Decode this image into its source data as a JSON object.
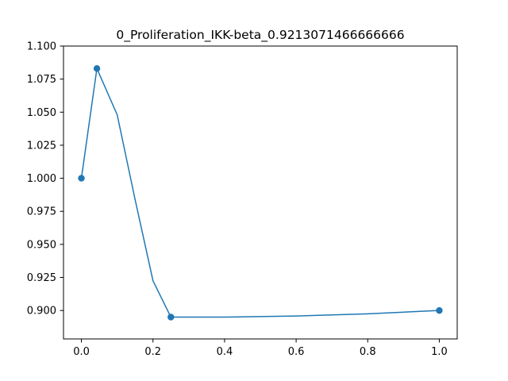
{
  "chart_data": {
    "type": "line",
    "title": "0_Proliferation_IKK-beta_0.9213071466666666",
    "xlabel": "",
    "ylabel": "",
    "xlim": [
      -0.05,
      1.05
    ],
    "ylim": [
      0.8785,
      1.1
    ],
    "x_ticks": [
      "0.0",
      "0.2",
      "0.4",
      "0.6",
      "0.8",
      "1.0"
    ],
    "y_ticks": [
      "0.900",
      "0.925",
      "0.950",
      "0.975",
      "1.000",
      "1.025",
      "1.050",
      "1.075",
      "1.100"
    ],
    "grid": false,
    "color": "#1f77b4",
    "series": [
      {
        "line": {
          "x": [
            0.0,
            0.0433,
            0.1,
            0.15,
            0.2,
            0.25,
            0.4,
            0.6,
            0.8,
            1.0
          ],
          "y": [
            1.0,
            1.083,
            1.048,
            0.984,
            0.9225,
            0.895,
            0.895,
            0.8958,
            0.8975,
            0.9
          ]
        },
        "points": {
          "x": [
            0.0,
            0.0433,
            0.25,
            1.0
          ],
          "y": [
            1.0,
            1.083,
            0.895,
            0.9
          ]
        }
      }
    ]
  }
}
